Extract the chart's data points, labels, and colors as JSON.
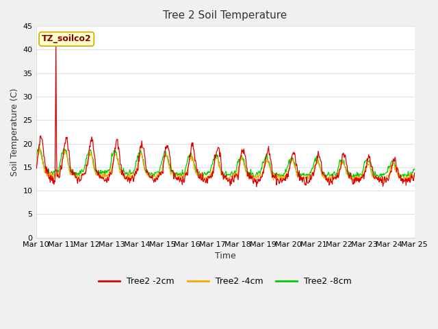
{
  "title": "Tree 2 Soil Temperature",
  "ylabel": "Soil Temperature (C)",
  "xlabel": "Time",
  "annotation": "TZ_soilco2",
  "ylim": [
    0,
    45
  ],
  "yticks": [
    0,
    5,
    10,
    15,
    20,
    25,
    30,
    35,
    40,
    45
  ],
  "x_labels": [
    "Mar 10",
    "Mar 11",
    "Mar 12",
    "Mar 13",
    "Mar 14",
    "Mar 15",
    "Mar 16",
    "Mar 17",
    "Mar 18",
    "Mar 19",
    "Mar 20",
    "Mar 21",
    "Mar 22",
    "Mar 23",
    "Mar 24",
    "Mar 25"
  ],
  "colors": {
    "Tree2_2cm": "#DD0000",
    "Tree2_4cm": "#FFA500",
    "Tree2_8cm": "#00CC00"
  },
  "legend_labels": [
    "Tree2 -2cm",
    "Tree2 -4cm",
    "Tree2 -8cm"
  ],
  "fig_bg": "#F0F0F0",
  "plot_bg": "#FFFFFF",
  "grid_color": "#E0E0E0"
}
